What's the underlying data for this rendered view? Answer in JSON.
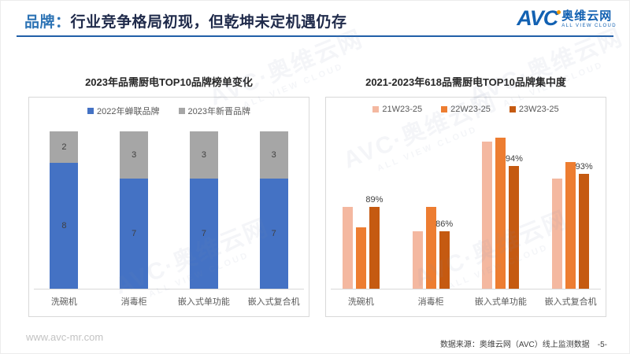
{
  "header": {
    "title_prefix": "品牌：",
    "title": "行业竞争格局初现，但乾坤未定机遇仍存",
    "logo": {
      "abbr": "AVC",
      "name_cn": "奥维云网",
      "name_en": "ALL VIEW CLOUD"
    }
  },
  "watermark": {
    "line1": "AVC·奥维云网",
    "line2": "ALL VIEW CLOUD"
  },
  "footer": {
    "website": "www.avc-mr.com",
    "source": "数据来源：奥维云网（AVC）线上监测数据",
    "page_number": "-5-"
  },
  "colors": {
    "accent_blue": "#2e74b5",
    "header_rule": "#215fa8",
    "bar_blue": "#4472c4",
    "bar_gray": "#a6a6a6",
    "bar_pink": "#f4b8a0",
    "bar_orange": "#ed7d31",
    "bar_dark_orange": "#c55a11"
  },
  "chart_data": [
    {
      "type": "bar",
      "variant": "stacked",
      "title": "2023年品需厨电TOP10品牌榜单变化",
      "categories": [
        "洗碗机",
        "消毒柜",
        "嵌入式单功能",
        "嵌入式复合机"
      ],
      "series": [
        {
          "name": "2022年蝉联品牌",
          "color": "#4472c4",
          "values": [
            8,
            7,
            7,
            7
          ]
        },
        {
          "name": "2023年新晋品牌",
          "color": "#a6a6a6",
          "values": [
            2,
            3,
            3,
            3
          ]
        }
      ],
      "ylim": [
        0,
        10
      ],
      "grid": false,
      "legend_position": "top",
      "data_labels": "every-segment"
    },
    {
      "type": "bar",
      "variant": "grouped",
      "title": "2021-2023年618品需厨电TOP10品牌集中度",
      "categories": [
        "洗碗机",
        "消毒柜",
        "嵌入式单功能",
        "嵌入式复合机"
      ],
      "series": [
        {
          "name": "21W23-25",
          "color": "#f4b8a0",
          "values": [
            89,
            86,
            97,
            92.5
          ]
        },
        {
          "name": "22W23-25",
          "color": "#ed7d31",
          "values": [
            86.5,
            89,
            97.5,
            94.5
          ]
        },
        {
          "name": "23W23-25",
          "color": "#c55a11",
          "values": [
            89,
            86,
            94,
            93
          ],
          "labels": [
            "89%",
            "86%",
            "94%",
            "93%"
          ]
        }
      ],
      "ylim": [
        79,
        100
      ],
      "grid": false,
      "legend_position": "top",
      "data_labels": "last-series-only"
    }
  ]
}
